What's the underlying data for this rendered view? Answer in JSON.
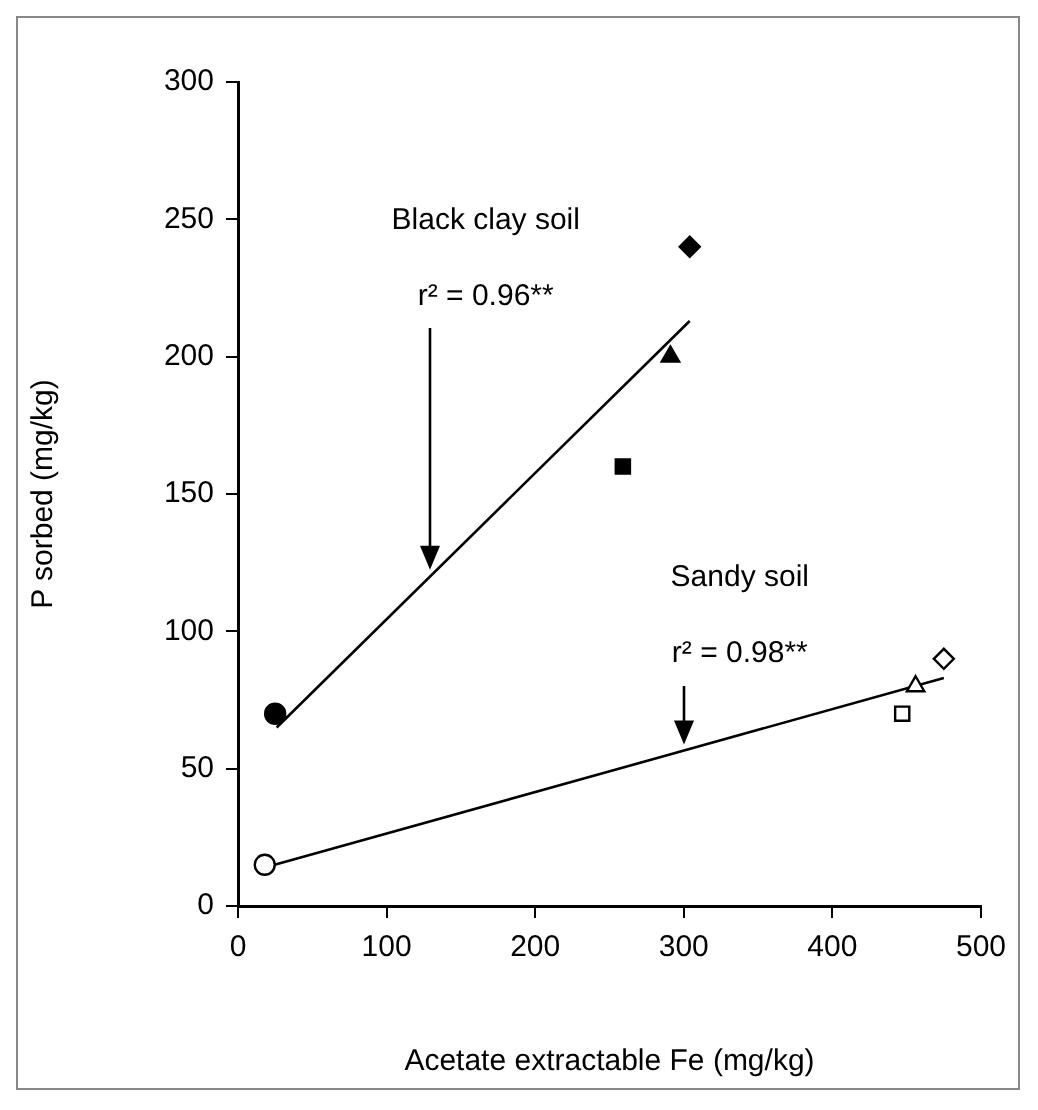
{
  "chart_data": {
    "type": "scatter",
    "xlabel": "Acetate extractable Fe (mg/kg)",
    "ylabel": "P sorbed (mg/kg)",
    "xlim": [
      0,
      500
    ],
    "xticks": [
      0,
      100,
      200,
      300,
      400,
      500
    ],
    "ylim": [
      0,
      300
    ],
    "yticks": [
      0,
      50,
      100,
      150,
      200,
      250,
      300
    ],
    "series": [
      {
        "color": "#000000",
        "colors": [
          "#000000",
          "#000000",
          "#000000",
          "#000000"
        ],
        "marker": [
          "circle",
          "square",
          "triangle",
          "diamond"
        ],
        "x": [
          25,
          259,
          291,
          304
        ],
        "values": [
          70,
          160,
          200,
          240
        ]
      },
      {
        "type": "line",
        "color": "#000000",
        "marker": "none",
        "x": [
          26,
          304
        ],
        "values": [
          65,
          213
        ]
      },
      {
        "color": "#000000",
        "colors": [
          "#ffffff",
          "#ffffff",
          "#ffffff",
          "#ffffff"
        ],
        "marker": [
          "circle",
          "square",
          "triangle",
          "diamond"
        ],
        "x": [
          18,
          447,
          456,
          475
        ],
        "values": [
          15,
          70,
          80,
          90
        ]
      },
      {
        "type": "line",
        "color": "#000000",
        "marker": "none",
        "x": [
          18,
          475
        ],
        "values": [
          14,
          83
        ]
      }
    ],
    "annotations": [
      "Black clay soil",
      "r² = 0.96**",
      "Sandy soil",
      "r² = 0.98**"
    ]
  }
}
